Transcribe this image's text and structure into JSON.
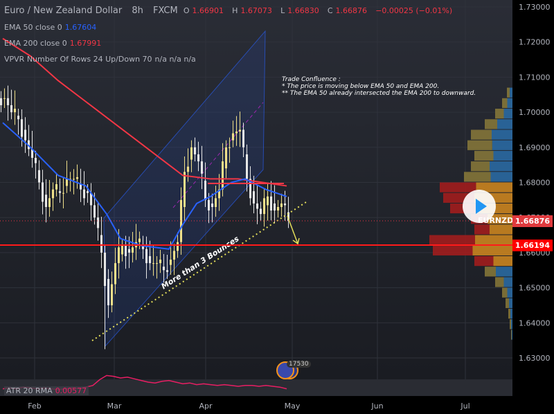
{
  "header": {
    "symbol_name": "Euro / New Zealand Dollar",
    "interval": "8h",
    "exchange": "FXCM",
    "open_label": "O",
    "open": "1.66901",
    "high_label": "H",
    "high": "1.67073",
    "low_label": "L",
    "low": "1.66830",
    "close_label": "C",
    "close": "1.66876",
    "change": "−0.00025 (−0.01%)"
  },
  "indicators": {
    "ema50": {
      "label": "EMA 50 close 0",
      "value": "1.67604",
      "color": "#2962ff"
    },
    "ema200": {
      "label": "EMA 200 close 0",
      "value": "1.67991",
      "color": "#f23645"
    },
    "vpvr": {
      "label": "VPVR Number Of Rows 24 Up/Down 70",
      "values": "n/a n/a n/a"
    },
    "atr": {
      "label": "ATR 20 RMA",
      "value": "0.00577",
      "color": "#e91e63"
    }
  },
  "annotations": {
    "note_title": "Trade Confluence :",
    "note_line1": "* The price is moving below EMA 50 and EMA 200.",
    "note_line2": "** The EMA 50 already intersected the EMA 200 to downward.",
    "trendline_text": "More than 3 Bounces"
  },
  "price_tags": {
    "symbol": "EURNZD",
    "last_price": "1.66876",
    "horizontal_level": "1.66194"
  },
  "badge_count": "17530",
  "chart_data": {
    "type": "candlestick",
    "ylim": [
      1.63,
      1.73
    ],
    "y_ticks": [
      "1.73000",
      "1.72000",
      "1.71000",
      "1.70000",
      "1.69000",
      "1.68000",
      "1.67000",
      "1.66000",
      "1.65000",
      "1.64000",
      "1.63000"
    ],
    "x_ticks": [
      "Feb",
      "Mar",
      "Apr",
      "May",
      "Jun",
      "Jul"
    ],
    "closes": [
      1.704,
      1.7,
      1.698,
      1.692,
      1.687,
      1.68,
      1.673,
      1.678,
      1.677,
      1.681,
      1.681,
      1.678,
      1.677,
      1.67,
      1.66,
      1.645,
      1.657,
      1.662,
      1.66,
      1.663,
      1.661,
      1.657,
      1.657,
      1.655,
      1.658,
      1.663,
      1.683,
      1.69,
      1.686,
      1.675,
      1.673,
      1.678,
      1.69,
      1.694,
      1.695,
      1.681,
      1.674,
      1.671,
      1.676,
      1.672,
      1.674,
      1.669
    ],
    "period_low": 1.6325,
    "ema50": [
      [
        0,
        1.697
      ],
      [
        4,
        1.69
      ],
      [
        8,
        1.682
      ],
      [
        12,
        1.679
      ],
      [
        15,
        1.671
      ],
      [
        17,
        1.664
      ],
      [
        20,
        1.662
      ],
      [
        24,
        1.661
      ],
      [
        26,
        1.668
      ],
      [
        28,
        1.674
      ],
      [
        30,
        1.676
      ],
      [
        33,
        1.68
      ],
      [
        35,
        1.681
      ],
      [
        38,
        1.678
      ],
      [
        41,
        1.676
      ]
    ],
    "ema200": [
      [
        0,
        1.721
      ],
      [
        4,
        1.716
      ],
      [
        8,
        1.709
      ],
      [
        12,
        1.703
      ],
      [
        16,
        1.697
      ],
      [
        20,
        1.691
      ],
      [
        24,
        1.685
      ],
      [
        26,
        1.682
      ],
      [
        30,
        1.681
      ],
      [
        34,
        1.681
      ],
      [
        41,
        1.679
      ]
    ],
    "atr": [
      0.0052,
      0.0053,
      0.0052,
      0.0054,
      0.0053,
      0.0052,
      0.0053,
      0.0052,
      0.0051,
      0.0052,
      0.0053,
      0.0052,
      0.0054,
      0.0056,
      0.0063,
      0.0068,
      0.0067,
      0.0065,
      0.0066,
      0.0064,
      0.0062,
      0.006,
      0.0059,
      0.0061,
      0.0062,
      0.006,
      0.0058,
      0.0059,
      0.0057,
      0.0058,
      0.0057,
      0.0056,
      0.0057,
      0.0056,
      0.0055,
      0.0056,
      0.0056,
      0.0055,
      0.0056,
      0.0055,
      0.0054,
      0.0052
    ],
    "volume_profile": {
      "price_range": [
        1.707,
        1.635
      ],
      "colors": {
        "up": "#2a6da8",
        "down": "#8a7a3a",
        "up_highlight": "#d48a1e",
        "down_highlight": "#a81c1c"
      },
      "rows": [
        {
          "vol": 8,
          "up": 0.5,
          "hl": false
        },
        {
          "vol": 15,
          "up": 0.5,
          "hl": false
        },
        {
          "vol": 25,
          "up": 0.5,
          "hl": false
        },
        {
          "vol": 40,
          "up": 0.55,
          "hl": false
        },
        {
          "vol": 60,
          "up": 0.5,
          "hl": false
        },
        {
          "vol": 65,
          "up": 0.45,
          "hl": false
        },
        {
          "vol": 55,
          "up": 0.5,
          "hl": false
        },
        {
          "vol": 60,
          "up": 0.55,
          "hl": false
        },
        {
          "vol": 70,
          "up": 0.45,
          "hl": false
        },
        {
          "vol": 105,
          "up": 0.5,
          "hl": true
        },
        {
          "vol": 100,
          "up": 0.55,
          "hl": true
        },
        {
          "vol": 90,
          "up": 0.55,
          "hl": true
        },
        {
          "vol": 60,
          "up": 0.6,
          "hl": true
        },
        {
          "vol": 55,
          "up": 0.6,
          "hl": true
        },
        {
          "vol": 120,
          "up": 0.45,
          "hl": true
        },
        {
          "vol": 115,
          "up": 0.5,
          "hl": true
        },
        {
          "vol": 55,
          "up": 0.5,
          "hl": true
        },
        {
          "vol": 40,
          "up": 0.6,
          "hl": false
        },
        {
          "vol": 25,
          "up": 0.5,
          "hl": false
        },
        {
          "vol": 15,
          "up": 0.5,
          "hl": false
        },
        {
          "vol": 10,
          "up": 0.5,
          "hl": false
        },
        {
          "vol": 6,
          "up": 0.5,
          "hl": false
        },
        {
          "vol": 4,
          "up": 0.5,
          "hl": false
        },
        {
          "vol": 2,
          "up": 0.5,
          "hl": false
        }
      ]
    }
  }
}
